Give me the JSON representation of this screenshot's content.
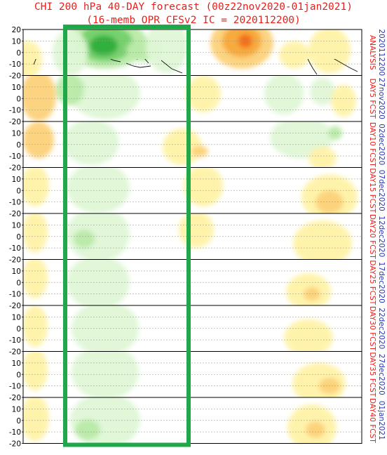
{
  "chart_data": {
    "type": "heatmap",
    "title": "CHI 200 hPa 40-DAY forecast (00z22nov2020-01jan2021)",
    "subtitle": "(16-memb OPR CFSv2 IC = 2020112200)",
    "ylim": [
      -20,
      20
    ],
    "yticks": [
      20,
      10,
      0,
      -10,
      -20
    ],
    "grid": true,
    "colors": {
      "positive_light": "#fff2a8",
      "positive_mid": "#fcd27a",
      "positive_strong": "#f7a93a",
      "positive_max": "#f26a1a",
      "negative_light": "#dff7d6",
      "negative_mid": "#b9eaa8",
      "negative_strong": "#74d06a",
      "negative_max": "#2fae3c",
      "highlight_box": "#1fa84a",
      "label_red": "#e8201c",
      "label_blue": "#2232b8"
    },
    "panels": [
      {
        "label": "ANALYSIS",
        "date": "2020112200"
      },
      {
        "label": "DAY5 FCST",
        "date": "27nov2020"
      },
      {
        "label": "DAY10 FCST",
        "date": "02dec2020"
      },
      {
        "label": "DAY15 FCST",
        "date": "07dec2020"
      },
      {
        "label": "DAY20 FCST",
        "date": "12dec2020"
      },
      {
        "label": "DAY25 FCST",
        "date": "17dec2020"
      },
      {
        "label": "DAY30 FCST",
        "date": "22dec2020"
      },
      {
        "label": "DAY35 FCST",
        "date": "27dec2020"
      },
      {
        "label": "DAY40 FCST",
        "date": "01jan2021"
      }
    ]
  }
}
